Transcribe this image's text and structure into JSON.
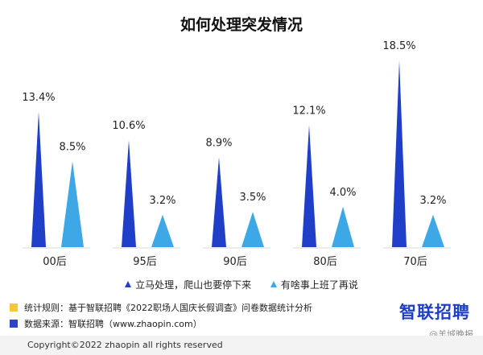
{
  "title": "如何处理突发情况",
  "chart_data": {
    "type": "bar",
    "categories": [
      "00后",
      "95后",
      "90后",
      "80后",
      "70后"
    ],
    "series": [
      {
        "name": "立马处理，爬山也要停下来",
        "values": [
          13.4,
          10.6,
          8.9,
          12.1,
          18.5
        ],
        "labels": [
          "13.4%",
          "10.6%",
          "8.9%",
          "12.1%",
          "18.5%"
        ],
        "color": "#1f3fc8"
      },
      {
        "name": "有啥事上班了再说",
        "values": [
          8.5,
          3.2,
          3.5,
          4.0,
          3.2
        ],
        "labels": [
          "8.5%",
          "3.2%",
          "3.5%",
          "4.0%",
          "3.2%"
        ],
        "color": "#3ea7e6"
      }
    ],
    "ylim": [
      0,
      18.5
    ],
    "grid": false,
    "legend": "bottom-center"
  },
  "notes": {
    "rule": "统计规则：基于智联招聘《2022职场人国庆长假调查》问卷数据统计分析",
    "source": "数据来源：智联招聘（www.zhaopin.com）"
  },
  "brand": "智联招聘",
  "watermark": "@羊城晚报",
  "footer": "Copyright©2022 zhaopin all rights reserved"
}
